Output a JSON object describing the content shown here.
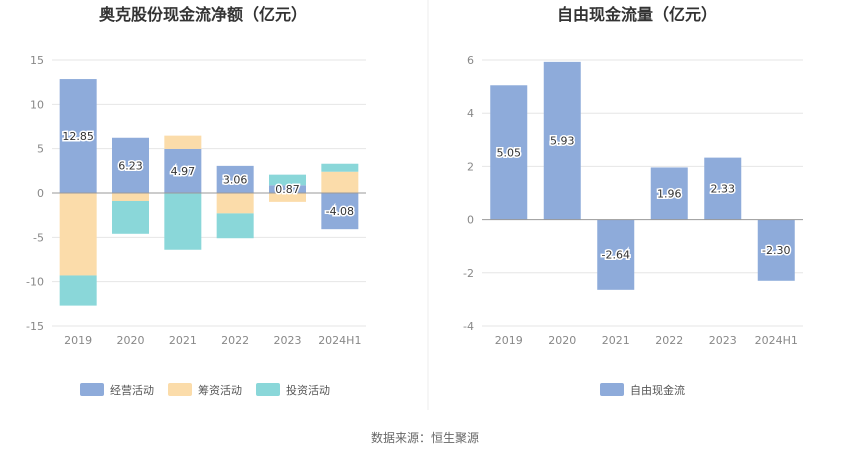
{
  "source_text": "数据来源：恒生聚源",
  "colors": {
    "operating": "#8eabda",
    "financing": "#fbdcaa",
    "investing": "#8ad7d9",
    "fcf": "#8eabda",
    "axis": "#999999",
    "grid": "#e6e6e6"
  },
  "chart_data": [
    {
      "type": "bar",
      "stacked": true,
      "title": "奥克股份现金流净额（亿元）",
      "categories": [
        "2019",
        "2020",
        "2021",
        "2022",
        "2023",
        "2024H1"
      ],
      "ylim": [
        -15,
        15
      ],
      "yticks": [
        15,
        10,
        5,
        0,
        -5,
        -10,
        -15
      ],
      "grid": true,
      "legend_position": "bottom",
      "series": [
        {
          "name": "经营活动",
          "color_key": "operating",
          "values": [
            12.85,
            6.23,
            4.97,
            3.06,
            0.87,
            -4.08
          ],
          "labeled": true
        },
        {
          "name": "筹资活动",
          "color_key": "financing",
          "values": [
            -9.3,
            -0.9,
            1.5,
            -2.3,
            -1.0,
            2.4
          ],
          "labeled": false
        },
        {
          "name": "投资活动",
          "color_key": "investing",
          "values": [
            -3.4,
            -3.7,
            -6.4,
            -2.8,
            1.2,
            0.9
          ],
          "labeled": false
        }
      ]
    },
    {
      "type": "bar",
      "title": "自由现金流量（亿元）",
      "categories": [
        "2019",
        "2020",
        "2021",
        "2022",
        "2023",
        "2024H1"
      ],
      "ylim": [
        -4,
        6
      ],
      "yticks": [
        6,
        4,
        2,
        0,
        -2,
        -4
      ],
      "grid": true,
      "legend_position": "bottom",
      "series": [
        {
          "name": "自由现金流",
          "color_key": "fcf",
          "values": [
            5.05,
            5.93,
            -2.64,
            1.96,
            2.33,
            -2.3
          ],
          "labeled": true
        }
      ]
    }
  ]
}
